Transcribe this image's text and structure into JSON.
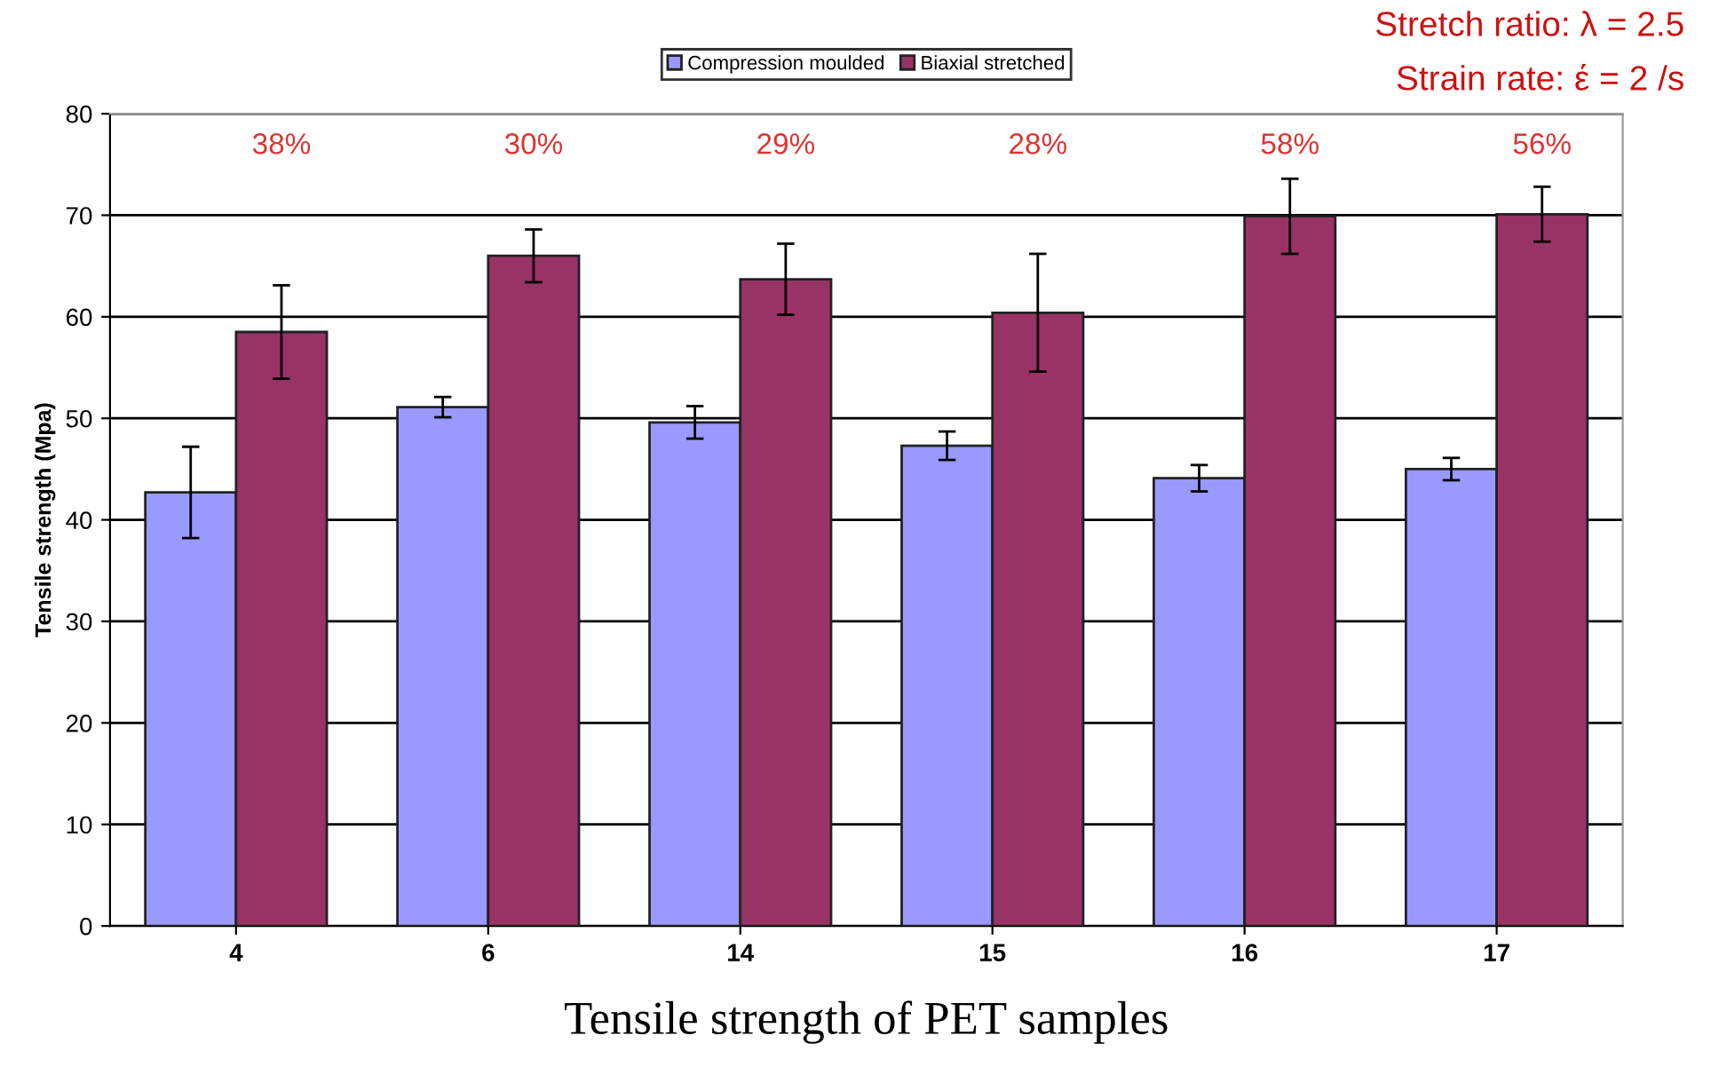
{
  "chart_data": {
    "type": "bar",
    "categories": [
      "4",
      "6",
      "14",
      "15",
      "16",
      "17"
    ],
    "series": [
      {
        "name": "Compression moulded",
        "color": "#9999ff",
        "values": [
          42.7,
          51.1,
          49.6,
          47.3,
          44.1,
          45.0
        ],
        "errors": [
          4.5,
          1.0,
          1.6,
          1.4,
          1.3,
          1.1
        ]
      },
      {
        "name": "Biaxial stretched",
        "color": "#993366",
        "values": [
          58.5,
          66.0,
          63.7,
          60.4,
          69.9,
          70.1
        ],
        "errors": [
          4.6,
          2.6,
          3.5,
          5.8,
          3.7,
          2.7
        ]
      }
    ],
    "ylabel": "Tensile strength (Mpa)",
    "xlabel": "Tensile strength of PET samples",
    "ylim": [
      0,
      80
    ],
    "yticks": [
      0,
      10,
      20,
      30,
      40,
      50,
      60,
      70,
      80
    ],
    "grid": "y",
    "legend": "top",
    "annotations": [
      "38%",
      "30%",
      "29%",
      "28%",
      "58%",
      "56%",
      "Stretch ratio: λ = 2.5",
      "Strain rate: έ = 2 /s"
    ]
  }
}
